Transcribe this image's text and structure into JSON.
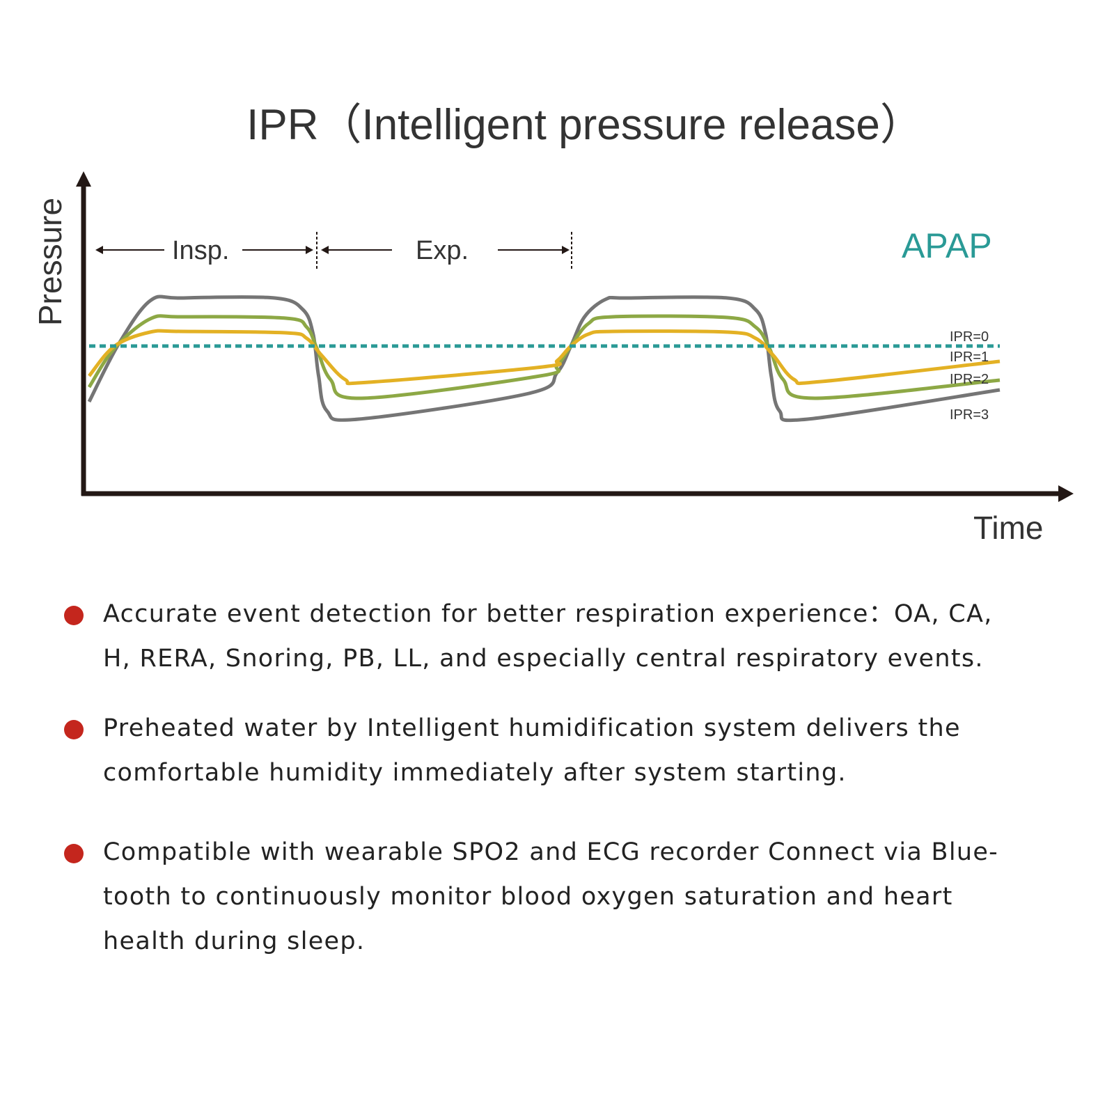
{
  "chart_data": {
    "type": "line",
    "title": "IPR（Intelligent pressure release）",
    "xlabel": "Time",
    "ylabel": "Pressure",
    "annotation_mode": "APAP",
    "phase_labels": [
      "Insp.",
      "Exp."
    ],
    "xlim": [
      0,
      100
    ],
    "ylim": [
      -20,
      14
    ],
    "colors": {
      "axis": "#231815",
      "apap": "#2a9a96",
      "ipr0": "#2a9a96",
      "ipr1": "#e3b124",
      "ipr2": "#8da845",
      "ipr3": "#757575",
      "bullet": "#c4261d"
    },
    "series": [
      {
        "name": "IPR=0",
        "style": "dashed",
        "t": [
          0,
          100
        ],
        "p": [
          0,
          0
        ]
      },
      {
        "name": "IPR=1",
        "t": [
          0,
          2.8,
          6.7,
          10.1,
          21.6,
          23.9,
          25.5,
          28.1,
          30.7,
          49.8,
          51.4,
          52.9,
          54.8,
          57.5,
          70.1,
          73.2,
          75.1,
          77.4,
          80.4,
          100
        ],
        "p": [
          -4.3,
          0,
          2.0,
          2.1,
          1.9,
          1.1,
          -1.3,
          -4.8,
          -5.2,
          -3.0,
          -2.1,
          0,
          1.7,
          2.1,
          2.0,
          1.1,
          -1.3,
          -4.8,
          -5.1,
          -2.2
        ]
      },
      {
        "name": "IPR=2",
        "t": [
          0,
          2.8,
          6.7,
          10.1,
          21.6,
          23.9,
          25.0,
          26.5,
          29.9,
          49.5,
          51.4,
          52.9,
          54.8,
          57.5,
          70.1,
          73.2,
          74.7,
          76.2,
          79.7,
          100
        ],
        "p": [
          -5.9,
          -0.3,
          3.9,
          4.2,
          4.0,
          2.7,
          -0.3,
          -4.8,
          -7.5,
          -4.3,
          -2.8,
          0,
          3.2,
          4.2,
          4.1,
          2.7,
          -0.3,
          -4.8,
          -7.5,
          -4.9
        ]
      },
      {
        "name": "IPR=3",
        "t": [
          0,
          3.2,
          6.7,
          10.1,
          20.4,
          23.5,
          24.6,
          25.2,
          26.1,
          29.6,
          48.3,
          51.4,
          52.9,
          54.4,
          56.7,
          59.0,
          70.1,
          73.2,
          74.3,
          74.9,
          75.8,
          78.9,
          100
        ],
        "p": [
          -8.0,
          0.2,
          6.5,
          6.9,
          6.9,
          5.2,
          1.7,
          -4.3,
          -9.3,
          -10.5,
          -6.8,
          -3.8,
          0,
          4.2,
          6.7,
          6.9,
          6.9,
          5.2,
          1.7,
          -4.3,
          -9.3,
          -10.5,
          -6.3
        ]
      }
    ]
  },
  "bullets": [
    {
      "line1": "Accurate event detection for better respiration experience：OA, CA,",
      "line2": "H, RERA, Snoring, PB, LL, and especially central respiratory events."
    },
    {
      "line1": "Preheated water by Intelligent humidification system delivers the",
      "line2": "comfortable humidity immediately after system starting."
    },
    {
      "line1": "Compatible with wearable SPO2 and ECG recorder Connect via Blue-",
      "line2": "tooth to continuously monitor blood oxygen saturation and heart",
      "line3": "health during sleep."
    }
  ]
}
